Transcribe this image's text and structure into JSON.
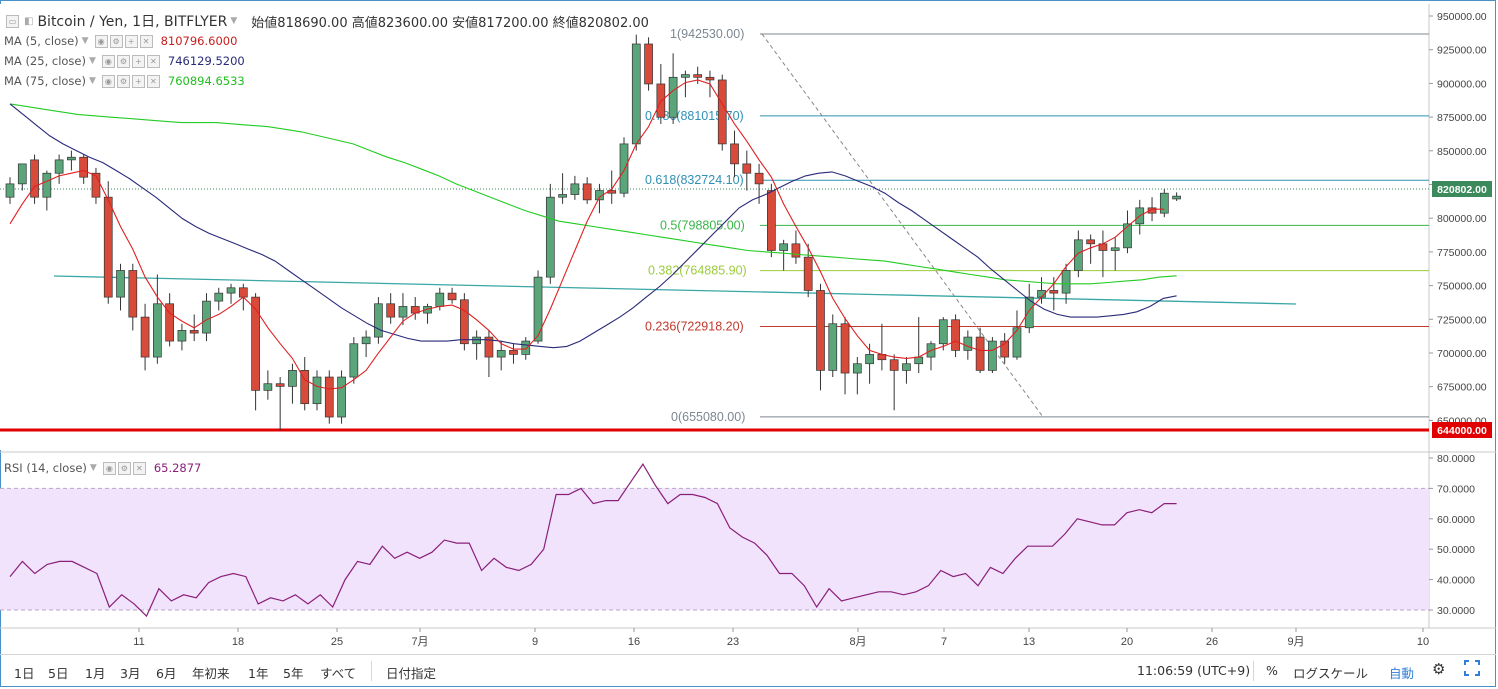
{
  "header": {
    "symbol": "Bitcoin / Yen, 1日, BITFLYER",
    "ohlc": "始値818690.00 高値823600.00 安値817200.00 終値820802.00"
  },
  "indicators": [
    {
      "name": "MA (5, close)",
      "value": "810796.6000",
      "color": "#e02020"
    },
    {
      "name": "MA (25, close)",
      "value": "746129.5200",
      "color": "#2a2a7a"
    },
    {
      "name": "MA (75, close)",
      "value": "760894.6533",
      "color": "#22cc22"
    }
  ],
  "rsi_header": {
    "name": "RSI (14, close)",
    "value": "65.2877",
    "color": "#8a1f7a"
  },
  "price_axis": {
    "ticks": [
      "950000.00",
      "925000.00",
      "900000.00",
      "875000.00",
      "850000.00",
      "825000.00",
      "800000.00",
      "775000.00",
      "750000.00",
      "725000.00",
      "700000.00",
      "675000.00",
      "650000.00"
    ],
    "last_price_label": "820802.00",
    "support_label": "644000.00"
  },
  "rsi_axis": {
    "ticks": [
      "80.0000",
      "70.0000",
      "60.0000",
      "50.0000",
      "40.0000",
      "30.0000"
    ]
  },
  "x_axis": {
    "ticks": [
      "11",
      "18",
      "25",
      "7月",
      "9",
      "16",
      "23",
      "8月",
      "7",
      "13",
      "20",
      "26",
      "9月",
      "10"
    ]
  },
  "fib_labels": [
    "1(942530.00)",
    "0.786(881015.70)",
    "0.618(832724.10)",
    "0.5(798805.00)",
    "0.382(764885.90)",
    "0.236(722918.20)",
    "0(655080.00)"
  ],
  "bottom_bar": {
    "ranges": [
      "1日",
      "5日",
      "1月",
      "3月",
      "6月",
      "年初来",
      "1年",
      "5年",
      "すべて"
    ],
    "date_button": "日付指定",
    "clock": "11:06:59 (UTC+9)",
    "percent": "%",
    "log_scale": "ログスケール",
    "auto": "自動"
  },
  "icons": [
    "gear-icon",
    "fullscreen-icon"
  ],
  "colors": {
    "up_candle": "#5ba57a",
    "down_candle": "#d84b3a",
    "support_line": "#e00000",
    "rsi_band": "#f1e3fb",
    "fib_blue": "#2f90b4",
    "fib_green": "#39b54a",
    "fib_lime": "#9ccc3c",
    "fib_red": "#c0392b",
    "fib_gray": "#7d8791",
    "trend_teal": "#3aa6a6"
  },
  "chart_data": [
    {
      "type": "candlestick",
      "title": "Bitcoin / Yen, 1日, BITFLYER",
      "ylim": [
        640000,
        955000
      ],
      "x_tick_labels": [
        "11",
        "18",
        "25",
        "7月",
        "9",
        "16",
        "23",
        "8月",
        "7",
        "13",
        "20",
        "26",
        "9月",
        "10"
      ],
      "ohlc": [
        [
          820000,
          835000,
          815000,
          830000
        ],
        [
          830000,
          845000,
          825000,
          845000
        ],
        [
          848000,
          852000,
          815000,
          820000
        ],
        [
          820000,
          840000,
          810000,
          838000
        ],
        [
          838000,
          852000,
          830000,
          848000
        ],
        [
          848000,
          855000,
          840000,
          850000
        ],
        [
          850000,
          852000,
          830000,
          835000
        ],
        [
          838000,
          842000,
          815000,
          820000
        ],
        [
          820000,
          832000,
          740000,
          745000
        ],
        [
          745000,
          770000,
          735000,
          765000
        ],
        [
          765000,
          770000,
          720000,
          730000
        ],
        [
          730000,
          740000,
          690000,
          700000
        ],
        [
          700000,
          762000,
          695000,
          740000
        ],
        [
          740000,
          748000,
          708000,
          712000
        ],
        [
          712000,
          725000,
          705000,
          720000
        ],
        [
          720000,
          732000,
          712000,
          718000
        ],
        [
          718000,
          748000,
          712000,
          742000
        ],
        [
          742000,
          752000,
          735000,
          748000
        ],
        [
          748000,
          755000,
          740000,
          752000
        ],
        [
          752000,
          755000,
          735000,
          745000
        ],
        [
          745000,
          748000,
          660000,
          675000
        ],
        [
          675000,
          690000,
          668000,
          680000
        ],
        [
          680000,
          685000,
          645000,
          678000
        ],
        [
          678000,
          695000,
          665000,
          690000
        ],
        [
          690000,
          700000,
          660000,
          665000
        ],
        [
          665000,
          690000,
          660000,
          685000
        ],
        [
          685000,
          690000,
          650000,
          655000
        ],
        [
          655000,
          690000,
          650000,
          685000
        ],
        [
          685000,
          715000,
          680000,
          710000
        ],
        [
          710000,
          720000,
          700000,
          715000
        ],
        [
          715000,
          745000,
          710000,
          740000
        ],
        [
          740000,
          748000,
          725000,
          730000
        ],
        [
          730000,
          748000,
          724000,
          738000
        ],
        [
          738000,
          745000,
          728000,
          733000
        ],
        [
          733000,
          740000,
          725000,
          738000
        ],
        [
          738000,
          752000,
          735000,
          748000
        ],
        [
          748000,
          752000,
          740000,
          743000
        ],
        [
          743000,
          748000,
          705000,
          710000
        ],
        [
          710000,
          720000,
          698000,
          715000
        ],
        [
          715000,
          720000,
          685000,
          700000
        ],
        [
          700000,
          712000,
          690000,
          705000
        ],
        [
          705000,
          710000,
          695000,
          702000
        ],
        [
          702000,
          715000,
          698000,
          712000
        ],
        [
          712000,
          765000,
          710000,
          760000
        ],
        [
          760000,
          830000,
          755000,
          820000
        ],
        [
          820000,
          838000,
          815000,
          822000
        ],
        [
          822000,
          836000,
          818000,
          830000
        ],
        [
          830000,
          835000,
          815000,
          818000
        ],
        [
          818000,
          830000,
          808000,
          825000
        ],
        [
          825000,
          840000,
          815000,
          823000
        ],
        [
          823000,
          865000,
          820000,
          860000
        ],
        [
          860000,
          942000,
          855000,
          935000
        ],
        [
          935000,
          940000,
          900000,
          905000
        ],
        [
          905000,
          920000,
          875000,
          880000
        ],
        [
          880000,
          928000,
          875000,
          910000
        ],
        [
          910000,
          915000,
          895000,
          912000
        ],
        [
          912000,
          918000,
          905000,
          910000
        ],
        [
          910000,
          915000,
          895000,
          908000
        ],
        [
          908000,
          912000,
          855000,
          860000
        ],
        [
          860000,
          870000,
          835000,
          845000
        ],
        [
          845000,
          855000,
          825000,
          838000
        ],
        [
          838000,
          845000,
          815000,
          830000
        ],
        [
          825000,
          830000,
          775000,
          780000
        ],
        [
          780000,
          788000,
          765000,
          785000
        ],
        [
          785000,
          795000,
          770000,
          775000
        ],
        [
          775000,
          785000,
          745000,
          750000
        ],
        [
          750000,
          755000,
          675000,
          690000
        ],
        [
          690000,
          732000,
          685000,
          725000
        ],
        [
          725000,
          730000,
          672000,
          688000
        ],
        [
          688000,
          700000,
          672000,
          695000
        ],
        [
          695000,
          710000,
          680000,
          702000
        ],
        [
          702000,
          725000,
          690000,
          698000
        ],
        [
          698000,
          702000,
          660000,
          690000
        ],
        [
          690000,
          700000,
          680000,
          695000
        ],
        [
          695000,
          730000,
          688000,
          700000
        ],
        [
          700000,
          712000,
          690000,
          710000
        ],
        [
          710000,
          730000,
          705000,
          728000
        ],
        [
          728000,
          732000,
          700000,
          705000
        ],
        [
          705000,
          720000,
          698000,
          715000
        ],
        [
          715000,
          722000,
          688000,
          690000
        ],
        [
          690000,
          715000,
          688000,
          712000
        ],
        [
          712000,
          718000,
          695000,
          700000
        ],
        [
          700000,
          735000,
          698000,
          722000
        ],
        [
          722000,
          755000,
          718000,
          745000
        ],
        [
          745000,
          760000,
          740000,
          750000
        ],
        [
          750000,
          760000,
          735000,
          748000
        ],
        [
          748000,
          770000,
          740000,
          765000
        ],
        [
          765000,
          795000,
          760000,
          788000
        ],
        [
          788000,
          792000,
          770000,
          785000
        ],
        [
          785000,
          795000,
          760000,
          780000
        ],
        [
          780000,
          790000,
          765000,
          782000
        ],
        [
          782000,
          810000,
          778000,
          800000
        ],
        [
          800000,
          818000,
          792000,
          812000
        ],
        [
          812000,
          820000,
          802000,
          808000
        ],
        [
          808000,
          826000,
          805000,
          823000
        ],
        [
          818690,
          823600,
          817200,
          820802
        ]
      ],
      "ma5": [
        800000,
        815000,
        828000,
        832000,
        836000,
        838000,
        840000,
        836000,
        818000,
        798000,
        781000,
        760000,
        745000,
        733000,
        727000,
        722000,
        728000,
        732000,
        738000,
        745000,
        736000,
        722000,
        710000,
        699000,
        683000,
        678000,
        676000,
        677000,
        683000,
        690000,
        703000,
        715000,
        727000,
        733000,
        736000,
        738000,
        739000,
        735000,
        728000,
        720000,
        710000,
        706000,
        706000,
        716000,
        736000,
        758000,
        780000,
        802000,
        820000,
        826000,
        840000,
        860000,
        873000,
        892000,
        900000,
        906000,
        908000,
        905000,
        890000,
        875000,
        862000,
        848000,
        835000,
        815000,
        798000,
        782000,
        764000,
        744000,
        729000,
        716000,
        705000,
        702000,
        700000,
        699000,
        700000,
        705000,
        708000,
        712000,
        708000,
        705000,
        705000,
        710000,
        720000,
        735000,
        745000,
        755000,
        768000,
        778000,
        782000,
        785000,
        790000,
        798000,
        806000,
        811000,
        811000
      ],
      "ma25": [
        890000,
        882000,
        874000,
        866000,
        860000,
        855000,
        850000,
        846000,
        840000,
        834000,
        827000,
        820000,
        812000,
        804000,
        798000,
        793000,
        789000,
        785000,
        781000,
        777000,
        772000,
        765000,
        758000,
        751000,
        744000,
        737000,
        731000,
        725000,
        720000,
        717000,
        714000,
        712000,
        712000,
        712000,
        713000,
        713000,
        713000,
        712000,
        710000,
        709000,
        708000,
        707000,
        708000,
        712000,
        718000,
        724000,
        730000,
        737000,
        745000,
        753000,
        762000,
        772000,
        782000,
        792000,
        802000,
        812000,
        818000,
        822000,
        827000,
        832000,
        836000,
        838000,
        839000,
        836000,
        832000,
        828000,
        823000,
        816000,
        810000,
        803000,
        796000,
        789000,
        782000,
        775000,
        766000,
        758000,
        750000,
        742000,
        736000,
        732000,
        730000,
        730000,
        730000,
        731000,
        732000,
        734000,
        738000,
        744000,
        746000
      ],
      "ma75": [
        890000,
        888000,
        886000,
        884000,
        882000,
        881000,
        880000,
        879000,
        878000,
        877000,
        876000,
        876000,
        876000,
        875000,
        874000,
        873000,
        871000,
        869000,
        866000,
        863000,
        860000,
        855000,
        850000,
        846000,
        841000,
        836000,
        830000,
        825000,
        820000,
        815000,
        810000,
        806000,
        802000,
        800000,
        798000,
        796000,
        794000,
        792000,
        790000,
        788000,
        786000,
        784000,
        782000,
        780000,
        779000,
        778000,
        777000,
        776000,
        775000,
        774000,
        773000,
        772000,
        770000,
        768000,
        766000,
        764000,
        762000,
        760000,
        758000,
        757000,
        756000,
        755000,
        755000,
        755000,
        756000,
        757000,
        758000,
        760000,
        761000
      ],
      "rsi": [
        41,
        46,
        42,
        45,
        46,
        46,
        44,
        42,
        31,
        35,
        32,
        28,
        37,
        33,
        35,
        34,
        39,
        41,
        42,
        41,
        32,
        34,
        33,
        35,
        32,
        35,
        31,
        40,
        46,
        45,
        51,
        47,
        49,
        47,
        49,
        53,
        52,
        52,
        43,
        47,
        44,
        43,
        45,
        50,
        68,
        68,
        70,
        65,
        66,
        66,
        72,
        78,
        71,
        65,
        68,
        68,
        67,
        65,
        57,
        54,
        52,
        48,
        42,
        42,
        38,
        31,
        37,
        33,
        34,
        35,
        36,
        36,
        35,
        36,
        38,
        43,
        41,
        42,
        38,
        44,
        42,
        47,
        51,
        51,
        51,
        55,
        60,
        59,
        58,
        58,
        62,
        63,
        62,
        65,
        65
      ]
    }
  ]
}
